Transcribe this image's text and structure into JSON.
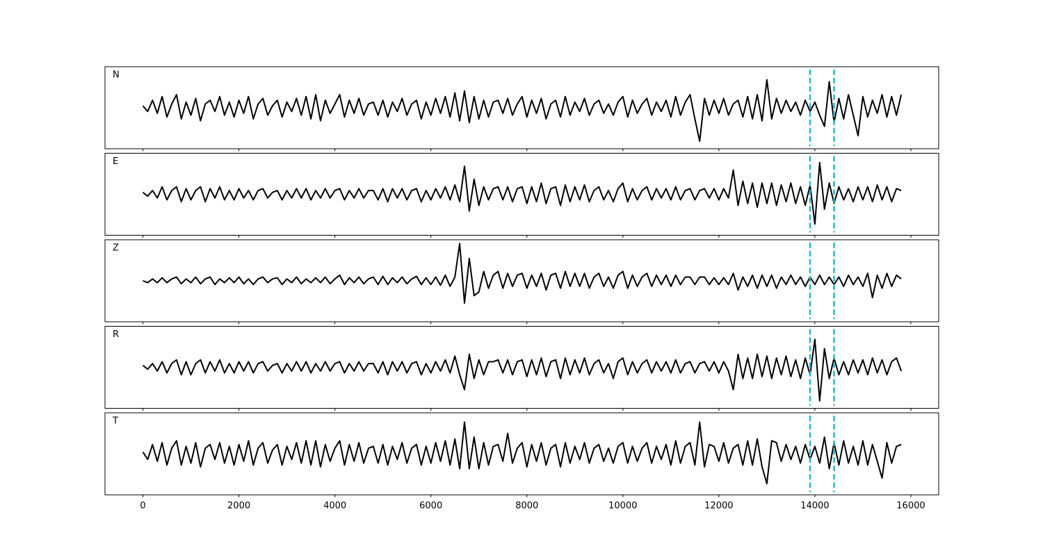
{
  "chart_data": {
    "type": "line",
    "xlim": [
      -790,
      16580
    ],
    "xticks": [
      0,
      2000,
      4000,
      6000,
      8000,
      10000,
      12000,
      14000,
      16000
    ],
    "ylim": [
      -1.1,
      1.1
    ],
    "x": [
      0,
      100,
      200,
      300,
      400,
      500,
      600,
      700,
      800,
      900,
      1000,
      1100,
      1200,
      1300,
      1400,
      1500,
      1600,
      1700,
      1800,
      1900,
      2000,
      2100,
      2200,
      2300,
      2400,
      2500,
      2600,
      2700,
      2800,
      2900,
      3000,
      3100,
      3200,
      3300,
      3400,
      3500,
      3600,
      3700,
      3800,
      3900,
      4000,
      4100,
      4200,
      4300,
      4400,
      4500,
      4600,
      4700,
      4800,
      4900,
      5000,
      5100,
      5200,
      5300,
      5400,
      5500,
      5600,
      5700,
      5800,
      5900,
      6000,
      6100,
      6200,
      6300,
      6400,
      6500,
      6600,
      6700,
      6800,
      6900,
      7000,
      7100,
      7200,
      7300,
      7400,
      7500,
      7600,
      7700,
      7800,
      7900,
      8000,
      8100,
      8200,
      8300,
      8400,
      8500,
      8600,
      8700,
      8800,
      8900,
      9000,
      9100,
      9200,
      9300,
      9400,
      9500,
      9600,
      9700,
      9800,
      9900,
      10000,
      10100,
      10200,
      10300,
      10400,
      10500,
      10600,
      10700,
      10800,
      10900,
      11000,
      11100,
      11200,
      11300,
      11400,
      11500,
      11600,
      11700,
      11800,
      11900,
      12000,
      12100,
      12200,
      12300,
      12400,
      12500,
      12600,
      12700,
      12800,
      12900,
      13000,
      13100,
      13200,
      13300,
      13400,
      13500,
      13600,
      13700,
      13800,
      13900,
      14000,
      14100,
      14200,
      14300,
      14400,
      14500,
      14600,
      14700,
      14800,
      14900,
      15000,
      15100,
      15200,
      15300,
      15400,
      15500,
      15600,
      15700,
      15800
    ],
    "series": [
      {
        "name": "N",
        "color": "#000000",
        "values": [
          0.05,
          -0.1,
          0.2,
          -0.15,
          0.3,
          -0.25,
          0.1,
          0.35,
          -0.3,
          0.15,
          -0.2,
          0.25,
          -0.35,
          0.1,
          0.2,
          -0.1,
          0.3,
          -0.2,
          0.15,
          -0.25,
          0.2,
          -0.15,
          0.3,
          -0.3,
          0.1,
          0.25,
          -0.2,
          0.05,
          0.2,
          -0.25,
          0.15,
          -0.1,
          0.25,
          -0.2,
          0.3,
          -0.3,
          0.35,
          -0.35,
          0.2,
          -0.15,
          0.1,
          0.35,
          -0.25,
          0.2,
          -0.15,
          0.25,
          -0.2,
          0.1,
          0.15,
          -0.2,
          0.2,
          -0.25,
          0.15,
          -0.1,
          0.25,
          -0.2,
          0.1,
          0.2,
          -0.3,
          0.15,
          -0.2,
          0.25,
          -0.15,
          0.3,
          -0.25,
          0.4,
          -0.35,
          0.45,
          -0.4,
          0.3,
          -0.3,
          0.2,
          -0.25,
          0.15,
          0.2,
          -0.15,
          0.25,
          -0.2,
          0.1,
          0.3,
          -0.25,
          0.2,
          -0.15,
          0.25,
          -0.3,
          0.1,
          0.2,
          -0.25,
          0.3,
          -0.2,
          0.15,
          -0.1,
          0.25,
          -0.2,
          0.1,
          0.2,
          -0.15,
          0.1,
          -0.2,
          0.15,
          0.3,
          -0.25,
          0.2,
          -0.15,
          0.1,
          0.25,
          -0.2,
          0.15,
          -0.1,
          0.2,
          -0.25,
          0.3,
          -0.2,
          0.15,
          0.35,
          -0.3,
          -0.9,
          0.25,
          -0.2,
          0.2,
          -0.15,
          0.25,
          -0.2,
          0.1,
          0.2,
          -0.25,
          0.3,
          -0.3,
          0.35,
          -0.35,
          0.75,
          -0.3,
          0.25,
          -0.15,
          0.2,
          -0.1,
          0.15,
          -0.2,
          0.2,
          -0.1,
          0.15,
          -0.2,
          -0.5,
          0.7,
          -0.4,
          0.25,
          -0.3,
          0.35,
          -0.2,
          -0.75,
          0.3,
          -0.25,
          0.2,
          -0.15,
          0.35,
          -0.25,
          0.3,
          -0.2,
          0.35
        ]
      },
      {
        "name": "E",
        "color": "#000000",
        "values": [
          0.05,
          -0.05,
          0.1,
          -0.1,
          0.2,
          -0.15,
          0.1,
          0.2,
          -0.2,
          0.15,
          -0.15,
          0.1,
          0.2,
          -0.2,
          0.15,
          -0.1,
          0.2,
          -0.15,
          0.1,
          -0.15,
          0.15,
          -0.1,
          0.1,
          -0.15,
          0.1,
          0.15,
          -0.1,
          0.05,
          0.1,
          -0.15,
          0.1,
          -0.1,
          0.15,
          -0.1,
          0.15,
          -0.15,
          0.1,
          -0.1,
          0.15,
          -0.1,
          0.1,
          0.15,
          -0.15,
          0.1,
          -0.1,
          0.15,
          -0.1,
          0.1,
          0.1,
          -0.15,
          0.15,
          -0.2,
          0.15,
          -0.1,
          0.15,
          -0.15,
          0.1,
          0.15,
          -0.2,
          0.1,
          -0.15,
          0.15,
          -0.1,
          0.2,
          -0.15,
          0.25,
          -0.2,
          0.75,
          -0.45,
          0.4,
          -0.3,
          0.2,
          -0.15,
          0.15,
          0.2,
          -0.15,
          0.2,
          -0.2,
          0.15,
          0.2,
          -0.25,
          0.2,
          -0.2,
          0.3,
          -0.25,
          0.15,
          0.2,
          -0.3,
          0.25,
          -0.2,
          0.2,
          -0.15,
          0.25,
          -0.2,
          0.1,
          0.2,
          -0.15,
          0.1,
          -0.2,
          0.15,
          0.3,
          -0.2,
          0.15,
          -0.15,
          0.1,
          0.2,
          -0.15,
          0.15,
          -0.1,
          0.15,
          -0.15,
          0.2,
          -0.15,
          0.1,
          0.15,
          -0.15,
          0.1,
          0.15,
          -0.1,
          0.15,
          -0.15,
          0.15,
          -0.1,
          0.65,
          -0.3,
          0.35,
          -0.25,
          0.3,
          -0.35,
          0.3,
          -0.25,
          0.3,
          -0.3,
          0.25,
          -0.2,
          0.3,
          -0.25,
          0.2,
          -0.3,
          0.25,
          -0.8,
          0.85,
          -0.4,
          0.3,
          -0.25,
          0.2,
          -0.15,
          0.15,
          -0.2,
          0.2,
          -0.15,
          0.2,
          -0.2,
          0.25,
          -0.15,
          0.2,
          -0.2,
          0.15,
          0.1
        ]
      },
      {
        "name": "Z",
        "color": "#000000",
        "values": [
          0.0,
          -0.05,
          0.05,
          -0.05,
          0.08,
          -0.05,
          0.05,
          0.1,
          -0.08,
          0.05,
          -0.05,
          0.1,
          -0.08,
          0.05,
          0.1,
          -0.1,
          0.05,
          -0.05,
          0.08,
          -0.05,
          0.1,
          -0.08,
          0.05,
          -0.1,
          0.05,
          0.1,
          -0.05,
          0.05,
          0.08,
          -0.1,
          0.05,
          -0.05,
          0.1,
          -0.08,
          0.05,
          -0.05,
          0.08,
          -0.05,
          0.1,
          -0.08,
          0.05,
          0.15,
          -0.1,
          0.08,
          -0.05,
          0.1,
          -0.08,
          0.05,
          0.1,
          -0.1,
          0.12,
          -0.1,
          0.08,
          -0.05,
          0.1,
          -0.08,
          0.05,
          0.12,
          -0.1,
          0.08,
          -0.1,
          0.1,
          -0.12,
          0.15,
          -0.15,
          0.1,
          1.0,
          -0.6,
          0.6,
          -0.4,
          -0.3,
          0.25,
          -0.2,
          0.15,
          0.25,
          -0.2,
          0.2,
          -0.15,
          0.15,
          0.2,
          -0.2,
          0.15,
          -0.15,
          0.2,
          -0.25,
          0.15,
          0.2,
          -0.2,
          0.25,
          -0.15,
          0.2,
          -0.15,
          0.2,
          -0.2,
          0.1,
          0.2,
          -0.15,
          0.1,
          -0.2,
          0.15,
          0.25,
          -0.2,
          0.15,
          -0.15,
          0.1,
          0.2,
          -0.15,
          0.15,
          -0.1,
          0.15,
          -0.15,
          0.15,
          -0.1,
          0.1,
          0.1,
          -0.1,
          0.1,
          0.1,
          -0.1,
          0.08,
          -0.1,
          0.08,
          -0.1,
          0.2,
          -0.25,
          0.1,
          -0.15,
          0.15,
          -0.2,
          0.15,
          -0.15,
          0.15,
          -0.2,
          0.1,
          -0.1,
          0.15,
          -0.1,
          0.1,
          -0.15,
          0.1,
          -0.1,
          0.15,
          -0.1,
          0.1,
          -0.1,
          0.1,
          -0.15,
          0.15,
          -0.1,
          0.1,
          -0.15,
          0.2,
          -0.45,
          0.15,
          -0.2,
          0.2,
          -0.15,
          0.15,
          0.05
        ]
      },
      {
        "name": "R",
        "color": "#000000",
        "values": [
          0.05,
          -0.05,
          0.1,
          -0.1,
          0.15,
          -0.15,
          0.1,
          0.2,
          -0.2,
          0.15,
          -0.2,
          0.1,
          0.2,
          -0.15,
          0.15,
          -0.1,
          0.2,
          -0.15,
          0.1,
          -0.15,
          0.15,
          -0.1,
          0.15,
          -0.15,
          0.1,
          0.15,
          -0.1,
          0.05,
          0.1,
          -0.15,
          0.1,
          -0.1,
          0.15,
          -0.1,
          0.15,
          -0.15,
          0.1,
          -0.1,
          0.15,
          -0.1,
          0.1,
          0.15,
          -0.15,
          0.1,
          -0.1,
          0.15,
          -0.1,
          0.1,
          0.1,
          -0.15,
          0.15,
          -0.2,
          0.15,
          -0.1,
          0.15,
          -0.15,
          0.1,
          0.15,
          -0.2,
          0.1,
          -0.15,
          0.15,
          -0.1,
          0.2,
          -0.15,
          0.3,
          -0.2,
          -0.6,
          0.35,
          -0.3,
          0.2,
          -0.2,
          0.15,
          0.15,
          0.2,
          -0.15,
          0.2,
          -0.2,
          0.15,
          0.2,
          -0.25,
          0.2,
          -0.2,
          0.25,
          -0.25,
          0.15,
          0.2,
          -0.3,
          0.25,
          -0.2,
          0.2,
          -0.15,
          0.25,
          -0.2,
          0.1,
          0.2,
          -0.15,
          0.1,
          -0.3,
          0.15,
          0.25,
          -0.2,
          0.15,
          -0.15,
          0.1,
          0.2,
          -0.15,
          0.15,
          -0.1,
          0.15,
          -0.15,
          0.2,
          -0.15,
          0.1,
          0.15,
          -0.15,
          0.1,
          0.15,
          -0.1,
          0.15,
          -0.15,
          0.15,
          -0.1,
          -0.6,
          0.35,
          -0.3,
          0.25,
          -0.3,
          0.35,
          -0.25,
          0.3,
          -0.3,
          0.25,
          -0.2,
          0.3,
          -0.25,
          0.2,
          -0.3,
          0.25,
          -0.2,
          0.75,
          -0.9,
          0.5,
          -0.3,
          0.25,
          -0.2,
          0.15,
          -0.2,
          0.2,
          -0.15,
          0.2,
          -0.2,
          0.25,
          -0.15,
          0.2,
          -0.2,
          0.15,
          0.25,
          -0.1
        ]
      },
      {
        "name": "T",
        "color": "#000000",
        "values": [
          0.05,
          -0.15,
          0.25,
          -0.2,
          0.3,
          -0.3,
          0.15,
          0.35,
          -0.3,
          0.2,
          -0.25,
          0.3,
          -0.35,
          0.15,
          0.25,
          -0.15,
          0.3,
          -0.25,
          0.2,
          -0.3,
          0.25,
          -0.2,
          0.35,
          -0.3,
          0.15,
          0.3,
          -0.25,
          0.1,
          0.25,
          -0.3,
          0.2,
          -0.15,
          0.3,
          -0.25,
          0.35,
          -0.3,
          0.35,
          -0.35,
          0.25,
          -0.2,
          0.15,
          0.35,
          -0.3,
          0.25,
          -0.2,
          0.3,
          -0.25,
          0.15,
          0.2,
          -0.25,
          0.25,
          -0.3,
          0.2,
          -0.15,
          0.3,
          -0.25,
          0.15,
          0.25,
          -0.3,
          0.2,
          -0.25,
          0.3,
          -0.2,
          0.35,
          -0.3,
          0.4,
          -0.4,
          0.85,
          -0.4,
          0.45,
          -0.4,
          0.3,
          -0.3,
          0.2,
          0.25,
          -0.2,
          0.55,
          -0.25,
          0.15,
          0.3,
          -0.35,
          0.25,
          -0.2,
          0.3,
          -0.3,
          0.15,
          0.25,
          -0.35,
          0.3,
          -0.25,
          0.2,
          -0.15,
          0.3,
          -0.25,
          0.15,
          0.25,
          -0.2,
          0.15,
          -0.25,
          0.2,
          0.3,
          -0.25,
          0.2,
          -0.2,
          0.15,
          0.3,
          -0.25,
          0.2,
          -0.15,
          0.25,
          -0.3,
          0.35,
          -0.25,
          0.2,
          0.3,
          -0.3,
          0.85,
          -0.35,
          0.25,
          0.2,
          -0.2,
          0.3,
          -0.25,
          0.15,
          0.25,
          -0.3,
          0.35,
          -0.3,
          0.4,
          -0.35,
          -0.8,
          0.35,
          0.3,
          -0.2,
          0.25,
          -0.15,
          0.2,
          -0.25,
          0.25,
          -0.15,
          0.2,
          -0.25,
          0.45,
          -0.4,
          0.3,
          -0.3,
          0.35,
          -0.25,
          0.2,
          -0.3,
          0.35,
          -0.3,
          0.25,
          -0.2,
          -0.65,
          0.3,
          -0.25,
          0.2,
          0.25
        ]
      }
    ],
    "markers": {
      "x": [
        13900,
        14400
      ],
      "color": "#17becf"
    }
  }
}
